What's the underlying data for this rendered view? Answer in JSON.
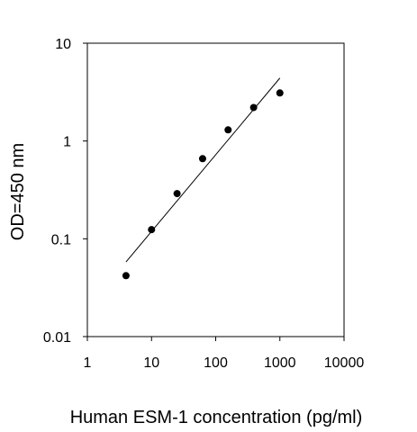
{
  "chart_data": {
    "type": "scatter",
    "title": "",
    "xlabel": "Human ESM-1 concentration (pg/ml)",
    "ylabel": "OD=450 nm",
    "xscale": "log",
    "yscale": "log",
    "xlim": [
      1,
      10000
    ],
    "ylim": [
      0.01,
      10
    ],
    "x_ticks": [
      "1",
      "10",
      "100",
      "1000",
      "10000"
    ],
    "y_ticks": [
      "0.01",
      "0.1",
      "1",
      "10"
    ],
    "grid": false,
    "legend": "none",
    "series": [
      {
        "marker": "filled circle",
        "color": "#000000",
        "x": [
          4,
          10,
          25,
          62.5,
          156,
          390,
          1000
        ],
        "y": [
          0.042,
          0.124,
          0.29,
          0.66,
          1.3,
          2.2,
          3.1
        ]
      }
    ],
    "fit_line": {
      "x": [
        4,
        1000
      ],
      "y": [
        0.058,
        4.4
      ],
      "color": "#000000"
    }
  }
}
